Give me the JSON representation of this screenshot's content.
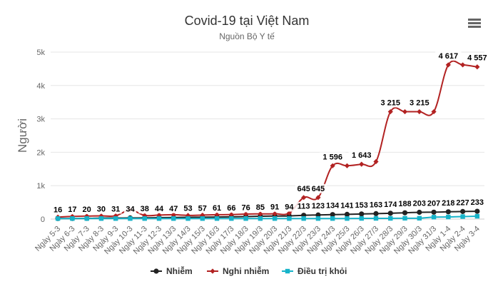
{
  "chart_data": {
    "type": "line",
    "title": "Covid-19 tại Việt Nam",
    "subtitle": "Nguồn Bộ Y tế",
    "ylabel": "Người",
    "xlabel": "",
    "ylim": [
      0,
      5000
    ],
    "yticks": [
      0,
      1000,
      2000,
      3000,
      4000,
      5000
    ],
    "ytick_labels": [
      "0",
      "1k",
      "2k",
      "3k",
      "4k",
      "5k"
    ],
    "categories": [
      "Ngày 5-3",
      "Ngày 6-3",
      "Ngày 7-3",
      "Ngày 8-3",
      "Ngày 9-3",
      "Ngày 10-3",
      "Ngày 11-3",
      "Ngày 12-3",
      "Ngày 13/3",
      "Ngày 14/3",
      "Ngày 15/3",
      "Ngày 16/3",
      "Ngày 17/3",
      "Ngày 18/3",
      "Ngày 19/3",
      "Ngày 20/3",
      "Ngày 21/3",
      "Ngày 22/3",
      "Ngày 23/3",
      "Ngày 24/3",
      "Ngày 25/3",
      "Ngày 26/3",
      "Ngày 27/3",
      "Ngày 28/3",
      "Ngày 29/3",
      "Ngày 30/3",
      "Ngày 31/3",
      "Ngày 1-4",
      "Ngày 2-4",
      "Ngày 3-4"
    ],
    "series": [
      {
        "name": "Nhiễm",
        "color": "#222222",
        "marker": "circle",
        "values": [
          16,
          17,
          20,
          30,
          31,
          34,
          38,
          44,
          47,
          53,
          57,
          61,
          66,
          76,
          85,
          91,
          94,
          113,
          123,
          134,
          141,
          153,
          163,
          174,
          188,
          203,
          207,
          218,
          227,
          233
        ],
        "labels": [
          "16",
          "17",
          "20",
          "30",
          "31",
          "34",
          "38",
          "44",
          "47",
          "53",
          "57",
          "61",
          "66",
          "76",
          "85",
          "91",
          "94",
          "113",
          "123",
          "134",
          "141",
          "153",
          "163",
          "174",
          "188",
          "203",
          "207",
          "218",
          "227",
          "233"
        ]
      },
      {
        "name": "Nghi nhiễm",
        "color": "#b22222",
        "marker": "diamond",
        "values": [
          60,
          80,
          90,
          95,
          100,
          270,
          110,
          120,
          130,
          110,
          120,
          130,
          135,
          150,
          155,
          160,
          180,
          645,
          645,
          1596,
          1596,
          1643,
          1720,
          3215,
          3215,
          3215,
          3215,
          4617,
          4617,
          4557
        ],
        "labels": [
          "",
          "",
          "",
          "",
          "",
          "",
          "",
          "",
          "",
          "",
          "",
          "",
          "",
          "",
          "",
          "",
          "",
          "645",
          "645",
          "1 596",
          "",
          "1 643",
          "",
          "3 215",
          "",
          "3 215",
          "",
          "4 617",
          "",
          "4 557"
        ]
      },
      {
        "name": "Điều trị khỏi",
        "color": "#17b3c9",
        "marker": "square",
        "values": [
          16,
          16,
          16,
          16,
          16,
          16,
          16,
          16,
          16,
          16,
          16,
          16,
          16,
          16,
          16,
          16,
          16,
          17,
          17,
          17,
          17,
          20,
          21,
          21,
          25,
          25,
          58,
          63,
          75,
          85
        ],
        "labels": []
      }
    ],
    "legend_position": "bottom-center",
    "menu_icon": "hamburger-menu-icon"
  }
}
